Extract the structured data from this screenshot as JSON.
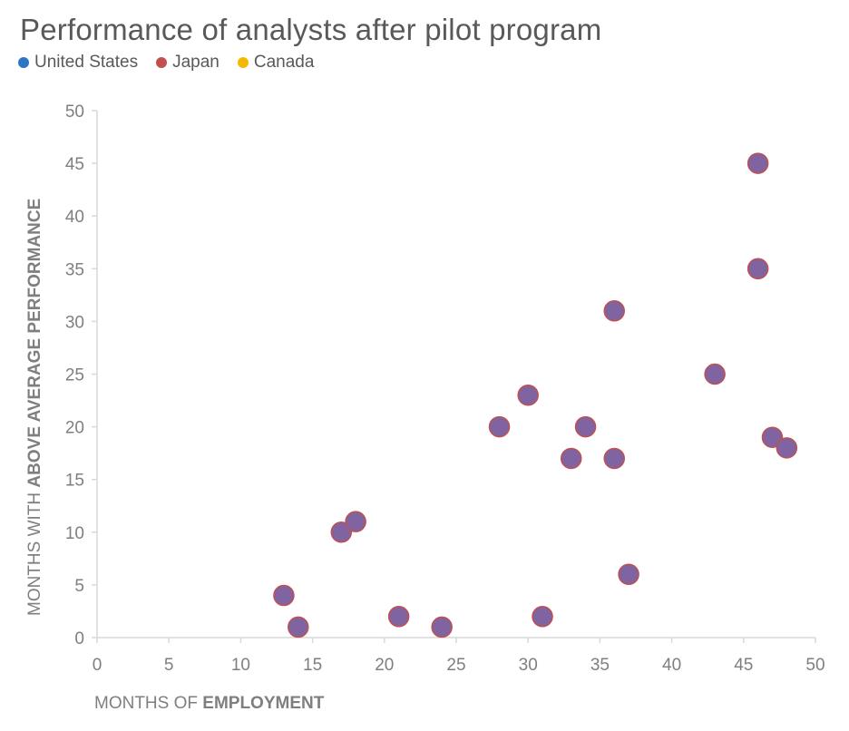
{
  "chart_data": {
    "type": "scatter",
    "title": "Performance of analysts after pilot program",
    "legend": [
      {
        "name": "United States",
        "color": "#2E75C4"
      },
      {
        "name": "Japan",
        "color": "#C0504D"
      },
      {
        "name": "Canada",
        "color": "#F5B800"
      }
    ],
    "legend_position": "top-left",
    "xlabel_prefix": "MONTHS OF ",
    "xlabel_emphasis": "EMPLOYMENT",
    "ylabel_prefix": "MONTHS WITH ",
    "ylabel_emphasis": "ABOVE AVERAGE PERFORMANCE",
    "xlim": [
      0,
      50
    ],
    "ylim": [
      0,
      50
    ],
    "xticks": [
      0,
      5,
      10,
      15,
      20,
      25,
      30,
      35,
      40,
      45,
      50
    ],
    "yticks": [
      0,
      5,
      10,
      15,
      20,
      25,
      30,
      35,
      40,
      45,
      50
    ],
    "grid": false,
    "marker_fill": "#8064A2",
    "marker_edge": "#C0504D",
    "points": [
      {
        "x": 13,
        "y": 4
      },
      {
        "x": 14,
        "y": 1
      },
      {
        "x": 17,
        "y": 10
      },
      {
        "x": 18,
        "y": 11
      },
      {
        "x": 21,
        "y": 2
      },
      {
        "x": 24,
        "y": 1
      },
      {
        "x": 28,
        "y": 20
      },
      {
        "x": 30,
        "y": 23
      },
      {
        "x": 31,
        "y": 2
      },
      {
        "x": 33,
        "y": 17
      },
      {
        "x": 34,
        "y": 20
      },
      {
        "x": 36,
        "y": 31
      },
      {
        "x": 36,
        "y": 17
      },
      {
        "x": 37,
        "y": 6
      },
      {
        "x": 43,
        "y": 25
      },
      {
        "x": 46,
        "y": 45
      },
      {
        "x": 46,
        "y": 35
      },
      {
        "x": 47,
        "y": 19
      },
      {
        "x": 48,
        "y": 18
      }
    ]
  }
}
